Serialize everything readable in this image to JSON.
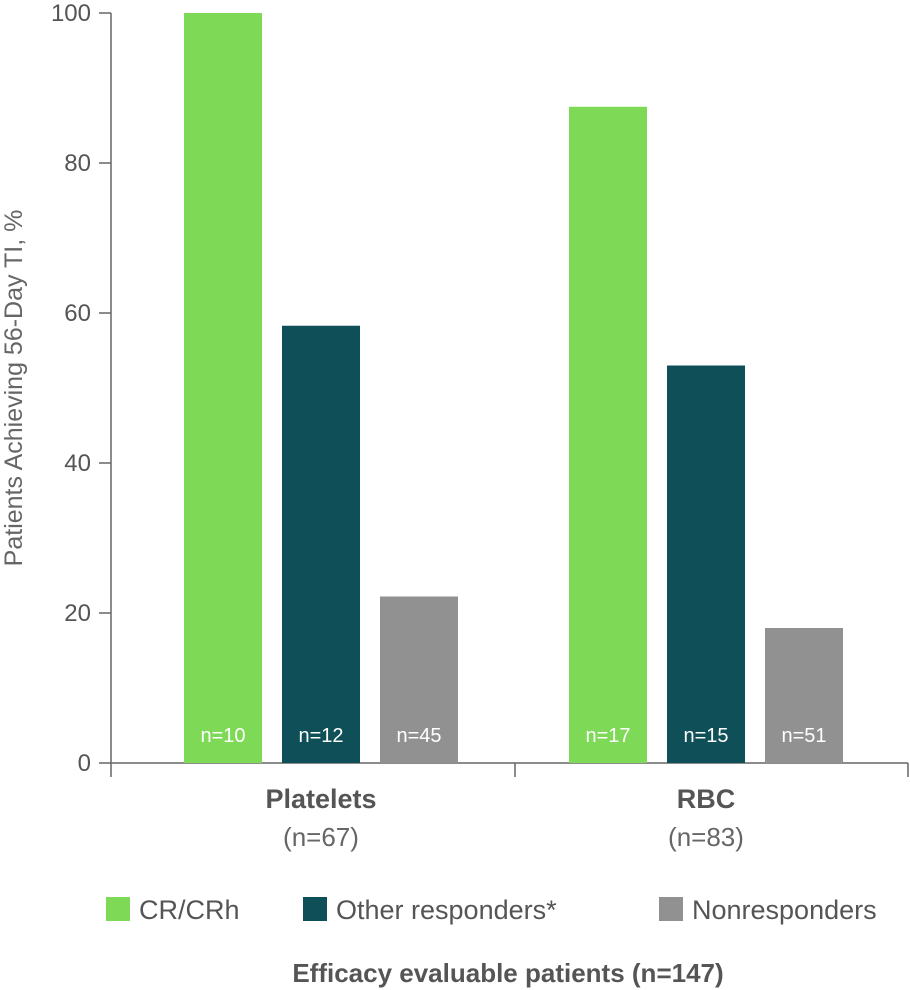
{
  "chart_data": {
    "type": "bar",
    "ylabel": "Patients Achieving 56-Day TI, %",
    "xlabel": "Efficacy evaluable patients (n=147)",
    "ylim": [
      0,
      100
    ],
    "yticks": [
      0,
      20,
      40,
      60,
      80,
      100
    ],
    "ytick_labels": [
      "0",
      "20",
      "40",
      "60",
      "80",
      "100"
    ],
    "grid": false,
    "legend_position": "bottom",
    "categories": [
      {
        "label": "Platelets",
        "sublabel": "(n=67)"
      },
      {
        "label": "RBC",
        "sublabel": "(n=83)"
      }
    ],
    "series": [
      {
        "name": "CR/CRh",
        "color": "#7ed957",
        "values": [
          100,
          87.5
        ],
        "bar_labels": [
          "n=10",
          "n=17"
        ]
      },
      {
        "name": "Other responders*",
        "color": "#0f4f57",
        "values": [
          58.3,
          53
        ],
        "bar_labels": [
          "n=12",
          "n=15"
        ]
      },
      {
        "name": "Nonresponders",
        "color": "#919191",
        "values": [
          22.2,
          18
        ],
        "bar_labels": [
          "n=45",
          "n=51"
        ]
      }
    ]
  }
}
